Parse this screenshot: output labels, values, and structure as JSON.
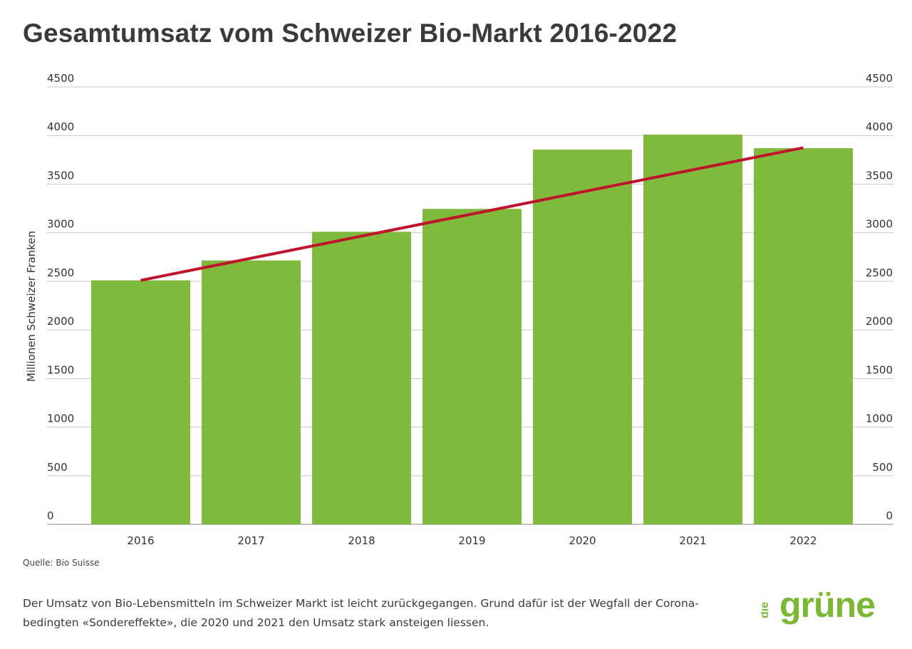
{
  "title": "Gesamtumsatz vom Schweizer Bio-Markt 2016-2022",
  "source": "Quelle: Bio Suisse",
  "caption": "Der Umsatz von Bio-Lebensmitteln im Schweizer Markt ist leicht zurückgegangen. Grund dafür ist der Wegfall der Corona-bedingten «Sondereffekte», die 2020 und 2021 den Umsatz stark ansteigen liessen.",
  "logo": {
    "small": "die",
    "main": "grüne",
    "color": "#7ab835"
  },
  "colors": {
    "bar": "#7fba3c",
    "trend": "#c0142c",
    "grid": "#c8c8c8",
    "axis": "#888888"
  },
  "chart_data": {
    "type": "bar",
    "title": "Gesamtumsatz vom Schweizer Bio-Markt 2016-2022",
    "xlabel": "",
    "ylabel": "Millionen Schweizer Franken",
    "categories": [
      "2016",
      "2017",
      "2018",
      "2019",
      "2020",
      "2021",
      "2022"
    ],
    "values": [
      2510,
      2715,
      3010,
      3245,
      3855,
      4010,
      3870
    ],
    "ylim": [
      0,
      4500
    ],
    "yticks": [
      0,
      500,
      1000,
      1500,
      2000,
      2500,
      3000,
      3500,
      4000,
      4500
    ],
    "secondary_yaxis": true,
    "grid": true,
    "legend": "none",
    "trendline": {
      "type": "linear",
      "start": [
        "2016",
        2510
      ],
      "end": [
        "2022",
        3875
      ]
    }
  }
}
